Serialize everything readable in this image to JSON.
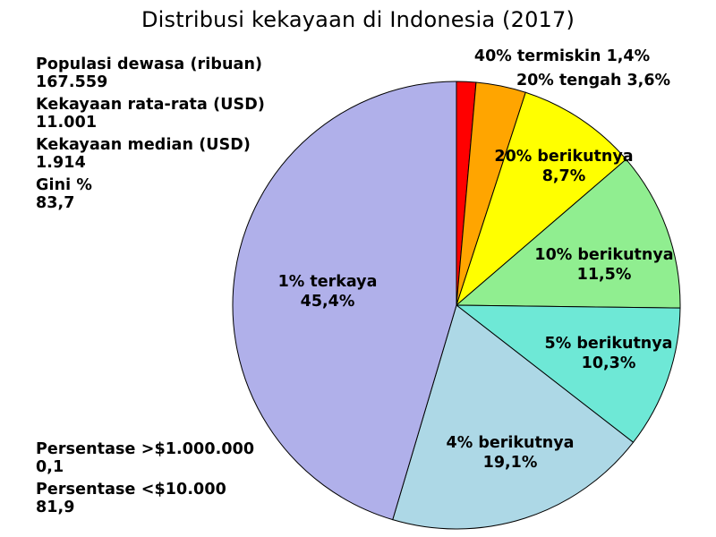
{
  "header": {
    "title": "Distribusi kekayaan di Indonesia (2017)"
  },
  "stats_top": [
    {
      "label": "Populasi dewasa (ribuan)",
      "value": "167.559"
    },
    {
      "label": "Kekayaan rata-rata (USD)",
      "value": "11.001"
    },
    {
      "label": "Kekayaan median (USD)",
      "value": "1.914"
    },
    {
      "label": "Gini %",
      "value": "83,7"
    }
  ],
  "stats_bottom": [
    {
      "label": "Persentase >$1.000.000",
      "value": "0,1"
    },
    {
      "label": "Persentase <$10.000",
      "value": "81,9"
    }
  ],
  "chart_data": {
    "type": "pie",
    "title": "Distribusi kekayaan di Indonesia (2017)",
    "start_angle_deg": 0,
    "direction": "clockwise",
    "slices": [
      {
        "name": "40% termiskin",
        "value": 1.4,
        "value_label": "1,4%",
        "color": "#ff0000",
        "label_line1": "40% termiskin 1,4%",
        "label_line2": ""
      },
      {
        "name": "20% tengah",
        "value": 3.6,
        "value_label": "3,6%",
        "color": "#ffa500",
        "label_line1": "20% tengah 3,6%",
        "label_line2": ""
      },
      {
        "name": "20% berikutnya",
        "value": 8.7,
        "value_label": "8,7%",
        "color": "#ffff00",
        "label_line1": "20% berikutnya",
        "label_line2": "8,7%"
      },
      {
        "name": "10% berikutnya",
        "value": 11.5,
        "value_label": "11,5%",
        "color": "#90ee90",
        "label_line1": "10% berikutnya",
        "label_line2": "11,5%"
      },
      {
        "name": "5% berikutnya",
        "value": 10.3,
        "value_label": "10,3%",
        "color": "#6ee8d6",
        "label_line1": "5% berikutnya",
        "label_line2": "10,3%"
      },
      {
        "name": "4% berikutnya",
        "value": 19.1,
        "value_label": "19,1%",
        "color": "#add8e6",
        "label_line1": "4% berikutnya",
        "label_line2": "19,1%"
      },
      {
        "name": "1% terkaya",
        "value": 45.4,
        "value_label": "45,4%",
        "color": "#b0b0ea",
        "label_line1": "1% terkaya",
        "label_line2": "45,4%"
      }
    ]
  }
}
